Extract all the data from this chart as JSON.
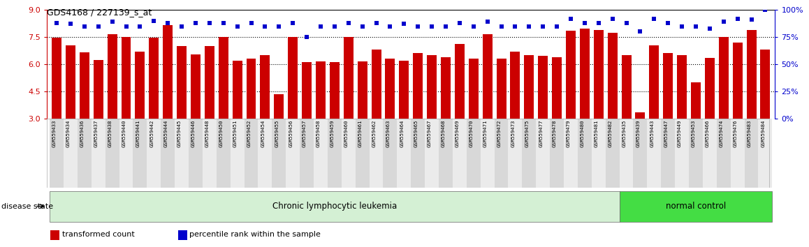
{
  "title": "GDS4168 / 227139_s_at",
  "samples": [
    "GSM559433",
    "GSM559434",
    "GSM559436",
    "GSM559437",
    "GSM559438",
    "GSM559440",
    "GSM559441",
    "GSM559442",
    "GSM559444",
    "GSM559445",
    "GSM559446",
    "GSM559448",
    "GSM559450",
    "GSM559451",
    "GSM559452",
    "GSM559454",
    "GSM559455",
    "GSM559456",
    "GSM559457",
    "GSM559458",
    "GSM559459",
    "GSM559460",
    "GSM559461",
    "GSM559462",
    "GSM559463",
    "GSM559464",
    "GSM559465",
    "GSM559467",
    "GSM559468",
    "GSM559469",
    "GSM559470",
    "GSM559471",
    "GSM559472",
    "GSM559473",
    "GSM559475",
    "GSM559477",
    "GSM559478",
    "GSM559479",
    "GSM559480",
    "GSM559481",
    "GSM559482",
    "GSM559435",
    "GSM559439",
    "GSM559443",
    "GSM559447",
    "GSM559449",
    "GSM559453",
    "GSM559466",
    "GSM559474",
    "GSM559476",
    "GSM559483",
    "GSM559484"
  ],
  "bar_values": [
    7.45,
    7.05,
    6.65,
    6.25,
    7.65,
    7.5,
    6.7,
    7.45,
    8.15,
    7.0,
    6.55,
    7.0,
    7.5,
    6.2,
    6.3,
    6.5,
    4.35,
    7.5,
    6.1,
    6.15,
    6.1,
    7.5,
    6.15,
    6.8,
    6.3,
    6.2,
    6.6,
    6.5,
    6.4,
    7.1,
    6.3,
    7.65,
    6.3,
    6.7,
    6.5,
    6.45,
    6.4,
    7.85,
    7.95,
    7.9,
    7.75,
    6.5,
    3.35,
    7.05,
    6.6,
    6.5,
    5.0,
    6.35,
    7.5,
    7.2,
    7.9,
    6.8
  ],
  "percentile_values": [
    88,
    87,
    85,
    85,
    89,
    85,
    85,
    90,
    88,
    85,
    88,
    88,
    88,
    85,
    88,
    85,
    85,
    88,
    75,
    85,
    85,
    88,
    85,
    88,
    85,
    87,
    85,
    85,
    85,
    88,
    85,
    89,
    85,
    85,
    85,
    85,
    85,
    92,
    88,
    88,
    92,
    88,
    80,
    92,
    88,
    85,
    85,
    83,
    89,
    92,
    91,
    100
  ],
  "group_labels": [
    "Chronic lymphocytic leukemia",
    "normal control"
  ],
  "group_sizes": [
    41,
    11
  ],
  "group_colors": [
    "#d4f0d4",
    "#44dd44"
  ],
  "bar_color": "#cc0000",
  "dot_color": "#0000cc",
  "ylim_left": [
    3,
    9
  ],
  "ylim_right": [
    0,
    100
  ],
  "yticks_left": [
    3,
    4.5,
    6,
    7.5,
    9
  ],
  "yticks_right": [
    0,
    25,
    50,
    75,
    100
  ],
  "grid_values": [
    4.5,
    6.0,
    7.5
  ],
  "disease_state_label": "disease state",
  "legend_items": [
    "transformed count",
    "percentile rank within the sample"
  ],
  "legend_colors": [
    "#cc0000",
    "#0000cc"
  ],
  "bg_colors": [
    "#d8d8d8",
    "#ebebeb"
  ]
}
